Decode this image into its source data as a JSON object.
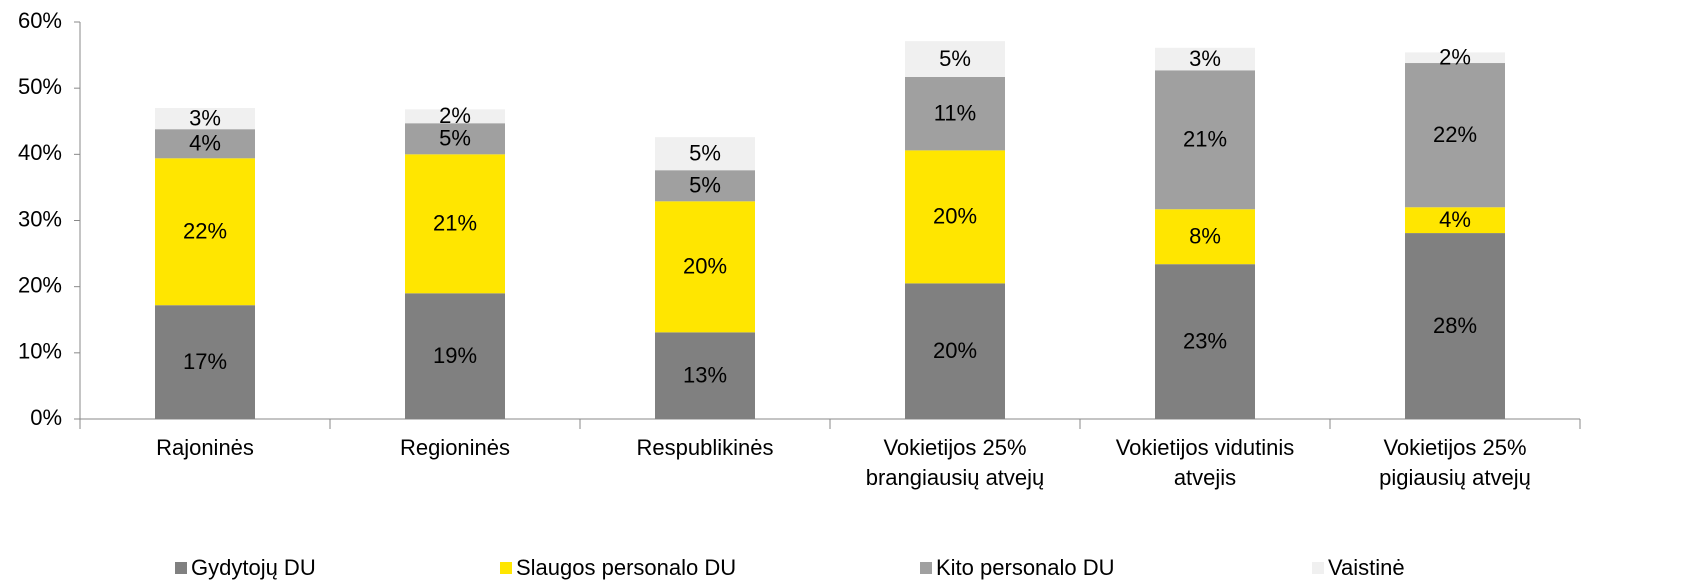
{
  "chart_data": {
    "type": "stacked-bar",
    "categories": [
      [
        "Rajoninės"
      ],
      [
        "Regioninės"
      ],
      [
        "Respublikinės"
      ],
      [
        "Vokietijos 25%",
        "brangiausių atvejų"
      ],
      [
        "Vokietijos vidutinis",
        "atvejis"
      ],
      [
        "Vokietijos 25%",
        "pigiausių atvejų"
      ]
    ],
    "series": [
      {
        "name": "Gydytojų DU",
        "color": "#808080",
        "values": [
          17.2,
          19.0,
          13.1,
          20.5,
          23.4,
          28.1
        ],
        "value_labels": [
          "17%",
          "19%",
          "13%",
          "20%",
          "23%",
          "28%"
        ]
      },
      {
        "name": "Slaugos personalo DU",
        "color": "#ffe600",
        "values": [
          22.2,
          21.0,
          19.8,
          20.1,
          8.3,
          3.9
        ],
        "value_labels": [
          "22%",
          "21%",
          "20%",
          "20%",
          "8%",
          "4%"
        ]
      },
      {
        "name": "Kito personalo DU",
        "color": "#a0a0a0",
        "values": [
          4.4,
          4.7,
          4.7,
          11.1,
          21.0,
          21.8
        ],
        "value_labels": [
          "4%",
          "5%",
          "5%",
          "11%",
          "21%",
          "22%"
        ]
      },
      {
        "name": "Vaistinė",
        "color": "#f0f0f0",
        "values": [
          3.2,
          2.1,
          5.0,
          5.4,
          3.4,
          1.6
        ],
        "value_labels": [
          "3%",
          "2%",
          "5%",
          "5%",
          "3%",
          "2%"
        ]
      }
    ],
    "ylim": [
      0,
      60
    ],
    "yticks": [
      {
        "value": 0,
        "label": "0%"
      },
      {
        "value": 10,
        "label": "10%"
      },
      {
        "value": 20,
        "label": "20%"
      },
      {
        "value": 30,
        "label": "30%"
      },
      {
        "value": 40,
        "label": "40%"
      },
      {
        "value": 50,
        "label": "50%"
      },
      {
        "value": 60,
        "label": "60%"
      }
    ],
    "legend": "bottom"
  }
}
